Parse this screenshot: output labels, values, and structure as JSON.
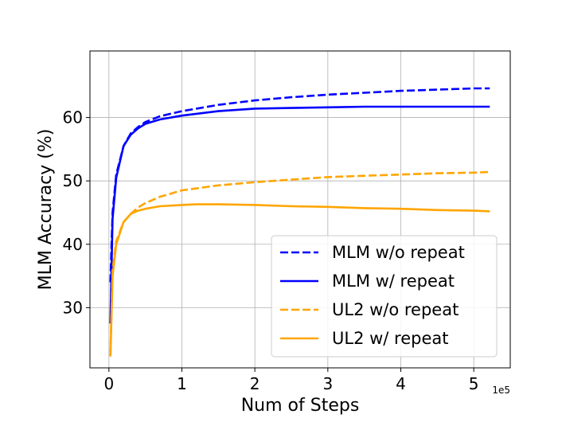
{
  "chart_data": {
    "type": "line",
    "xlabel": "Num of Steps",
    "ylabel": "MLM Accuracy (%)",
    "x_offset_label": "1e5",
    "xlim": [
      -0.26,
      5.5
    ],
    "ylim": [
      20.5,
      70.5
    ],
    "xticks": [
      0,
      1,
      2,
      3,
      4,
      5
    ],
    "xtick_labels": [
      "0",
      "1",
      "2",
      "3",
      "4",
      "5"
    ],
    "yticks": [
      30,
      40,
      50,
      60
    ],
    "ytick_labels": [
      "30",
      "40",
      "50",
      "60"
    ],
    "grid": true,
    "legend_position": "lower-right",
    "series": [
      {
        "name": "MLM w/o repeat",
        "color": "#0000ff",
        "dash": "dashed",
        "x": [
          0.02,
          0.05,
          0.1,
          0.2,
          0.3,
          0.4,
          0.5,
          0.7,
          1.0,
          1.5,
          2.0,
          2.5,
          3.0,
          3.5,
          4.0,
          4.5,
          5.0,
          5.22
        ],
        "y": [
          34,
          45,
          51,
          55.5,
          57.5,
          58.5,
          59.3,
          60.2,
          61.0,
          62.0,
          62.7,
          63.2,
          63.6,
          63.9,
          64.2,
          64.4,
          64.6,
          64.6
        ]
      },
      {
        "name": "MLM w/ repeat",
        "color": "#0000ff",
        "dash": "solid",
        "x": [
          0.02,
          0.05,
          0.1,
          0.2,
          0.3,
          0.4,
          0.5,
          0.7,
          1.0,
          1.5,
          2.0,
          2.5,
          3.0,
          3.5,
          4.0,
          4.5,
          5.0,
          5.22
        ],
        "y": [
          27.5,
          44,
          50.5,
          55.5,
          57.3,
          58.3,
          59.0,
          59.7,
          60.3,
          61.0,
          61.4,
          61.5,
          61.6,
          61.7,
          61.7,
          61.7,
          61.7,
          61.7
        ]
      },
      {
        "name": "UL2 w/o repeat",
        "color": "#ffa500",
        "dash": "dashed",
        "x": [
          0.02,
          0.05,
          0.1,
          0.2,
          0.3,
          0.4,
          0.5,
          0.7,
          1.0,
          1.5,
          2.0,
          2.5,
          3.0,
          3.5,
          4.0,
          4.5,
          5.0,
          5.22
        ],
        "y": [
          22.5,
          36,
          40.5,
          43.5,
          44.8,
          45.8,
          46.5,
          47.5,
          48.5,
          49.3,
          49.8,
          50.2,
          50.6,
          50.8,
          51.0,
          51.2,
          51.3,
          51.4
        ]
      },
      {
        "name": "UL2 w/ repeat",
        "color": "#ffa500",
        "dash": "solid",
        "x": [
          0.02,
          0.05,
          0.1,
          0.2,
          0.3,
          0.4,
          0.5,
          0.7,
          1.0,
          1.2,
          1.5,
          2.0,
          2.5,
          3.0,
          3.5,
          4.0,
          4.5,
          5.0,
          5.22
        ],
        "y": [
          22.3,
          35,
          40,
          43.5,
          44.8,
          45.3,
          45.6,
          46.0,
          46.2,
          46.3,
          46.3,
          46.2,
          46.0,
          45.9,
          45.7,
          45.6,
          45.4,
          45.3,
          45.2
        ]
      }
    ]
  }
}
